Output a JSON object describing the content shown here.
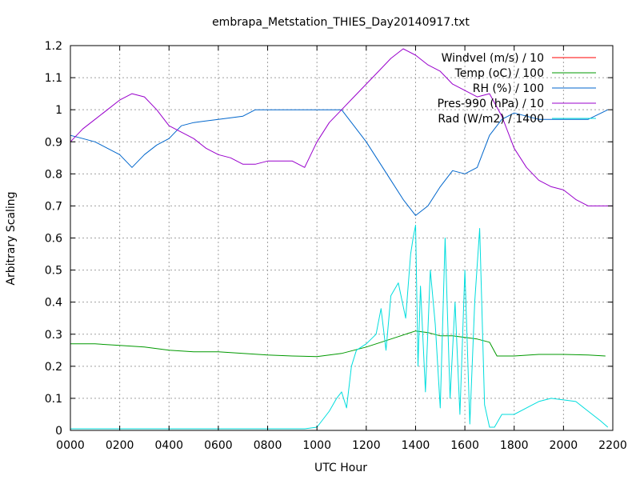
{
  "chart_data": {
    "type": "line",
    "title": "embrapa_Metstation_THIES_Day20140917.txt",
    "xlabel": "UTC Hour",
    "ylabel": "Arbitrary Scaling",
    "xlim": [
      0,
      2200
    ],
    "ylim": [
      0,
      1.2
    ],
    "xticks": [
      0,
      200,
      400,
      600,
      800,
      1000,
      1200,
      1400,
      1600,
      1800,
      2000,
      2200
    ],
    "xtick_labels": [
      "0000",
      "0200",
      "0400",
      "0600",
      "0800",
      "1000",
      "1200",
      "1400",
      "1600",
      "1800",
      "2000",
      "2200"
    ],
    "yticks": [
      0,
      0.1,
      0.2,
      0.3,
      0.4,
      0.5,
      0.6,
      0.7,
      0.8,
      0.9,
      1,
      1.1,
      1.2
    ],
    "ytick_labels": [
      "0",
      "0.1",
      "0.2",
      "0.3",
      "0.4",
      "0.5",
      "0.6",
      "0.7",
      "0.8",
      "0.9",
      "1",
      "1.1",
      "1.2"
    ],
    "grid": true,
    "legend_position": "top-right",
    "series": [
      {
        "name": "Windvel (m/s) / 10",
        "color": "#ff0000",
        "x": [],
        "y": []
      },
      {
        "name": "Temp (oC) / 100",
        "color": "#009900",
        "x": [
          0,
          100,
          200,
          300,
          400,
          500,
          600,
          700,
          800,
          900,
          1000,
          1100,
          1200,
          1300,
          1400,
          1450,
          1500,
          1550,
          1600,
          1650,
          1700,
          1730,
          1800,
          1900,
          2000,
          2100,
          2170
        ],
        "y": [
          0.27,
          0.27,
          0.265,
          0.26,
          0.25,
          0.245,
          0.245,
          0.24,
          0.235,
          0.232,
          0.23,
          0.24,
          0.26,
          0.285,
          0.31,
          0.305,
          0.295,
          0.295,
          0.29,
          0.285,
          0.275,
          0.232,
          0.232,
          0.237,
          0.237,
          0.235,
          0.232
        ]
      },
      {
        "name": "RH (%) / 100",
        "color": "#0066cc",
        "x": [
          0,
          50,
          100,
          150,
          200,
          250,
          300,
          350,
          400,
          450,
          500,
          600,
          700,
          750,
          800,
          900,
          1000,
          1100,
          1150,
          1200,
          1250,
          1300,
          1350,
          1400,
          1450,
          1500,
          1550,
          1600,
          1650,
          1700,
          1750,
          1800,
          1900,
          2000,
          2100,
          2180
        ],
        "y": [
          0.92,
          0.91,
          0.9,
          0.88,
          0.86,
          0.82,
          0.86,
          0.89,
          0.91,
          0.95,
          0.96,
          0.97,
          0.98,
          1.0,
          1.0,
          1.0,
          1.0,
          1.0,
          0.95,
          0.9,
          0.84,
          0.78,
          0.72,
          0.67,
          0.7,
          0.76,
          0.81,
          0.8,
          0.82,
          0.92,
          0.97,
          0.99,
          0.97,
          0.97,
          0.97,
          1.0
        ]
      },
      {
        "name": "Pres-990 (hPa) / 10",
        "color": "#9900cc",
        "x": [
          0,
          50,
          100,
          150,
          200,
          250,
          300,
          350,
          400,
          450,
          500,
          550,
          600,
          650,
          700,
          750,
          800,
          850,
          900,
          950,
          1000,
          1050,
          1100,
          1150,
          1200,
          1250,
          1300,
          1350,
          1400,
          1450,
          1500,
          1550,
          1600,
          1650,
          1700,
          1750,
          1800,
          1850,
          1900,
          1950,
          2000,
          2050,
          2100,
          2150,
          2200
        ],
        "y": [
          0.9,
          0.94,
          0.97,
          1.0,
          1.03,
          1.05,
          1.04,
          1.0,
          0.95,
          0.93,
          0.91,
          0.88,
          0.86,
          0.85,
          0.83,
          0.83,
          0.84,
          0.84,
          0.84,
          0.82,
          0.9,
          0.96,
          1.0,
          1.04,
          1.08,
          1.12,
          1.16,
          1.19,
          1.17,
          1.14,
          1.12,
          1.08,
          1.06,
          1.04,
          1.05,
          0.98,
          0.88,
          0.82,
          0.78,
          0.76,
          0.75,
          0.72,
          0.7,
          0.7,
          0.7
        ]
      },
      {
        "name": "Rad (W/m2) / 1400",
        "color": "#00dddd",
        "x": [
          0,
          200,
          400,
          600,
          800,
          950,
          1000,
          1050,
          1080,
          1100,
          1120,
          1140,
          1160,
          1200,
          1240,
          1260,
          1280,
          1300,
          1330,
          1360,
          1380,
          1390,
          1400,
          1410,
          1420,
          1440,
          1460,
          1480,
          1500,
          1520,
          1540,
          1560,
          1580,
          1600,
          1620,
          1640,
          1660,
          1680,
          1700,
          1720,
          1750,
          1800,
          1850,
          1900,
          1950,
          2000,
          2050,
          2100,
          2150,
          2180
        ],
        "y": [
          0.005,
          0.005,
          0.005,
          0.005,
          0.005,
          0.005,
          0.01,
          0.06,
          0.1,
          0.12,
          0.07,
          0.2,
          0.25,
          0.27,
          0.3,
          0.38,
          0.25,
          0.42,
          0.46,
          0.35,
          0.55,
          0.6,
          0.64,
          0.2,
          0.45,
          0.12,
          0.5,
          0.33,
          0.07,
          0.6,
          0.1,
          0.4,
          0.05,
          0.5,
          0.02,
          0.4,
          0.63,
          0.08,
          0.01,
          0.01,
          0.05,
          0.05,
          0.07,
          0.09,
          0.1,
          0.095,
          0.09,
          0.06,
          0.03,
          0.01
        ]
      }
    ]
  }
}
